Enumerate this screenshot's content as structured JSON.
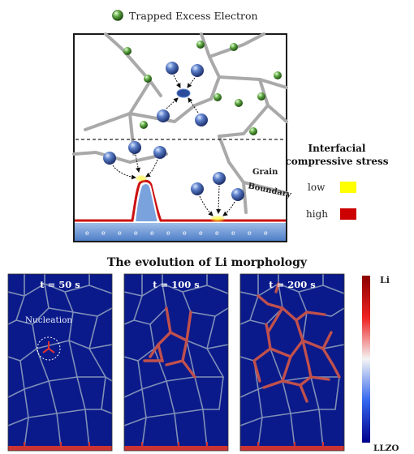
{
  "legend": {
    "trapped_label": "Trapped Excess Electron"
  },
  "schematic": {
    "grain_label": "Grain",
    "boundary_label": "Boundary"
  },
  "stress_legend": {
    "title_line1": "Interfacial",
    "title_line2": "compressive stress",
    "low_label": "low",
    "high_label": "high",
    "low_color": "#ffff00",
    "high_color": "#cc0000"
  },
  "morphology": {
    "title": "The evolution of Li morphology",
    "panels": [
      {
        "time_label": "t = 50 s"
      },
      {
        "time_label": "t = 100 s"
      },
      {
        "time_label": "t = 200 s"
      }
    ],
    "nucleation_label": "Nucleation"
  },
  "colorbar": {
    "top_label": "Li",
    "bottom_label": "LLZO",
    "top_color": "#8b0000",
    "bottom_color": "#00008b"
  }
}
